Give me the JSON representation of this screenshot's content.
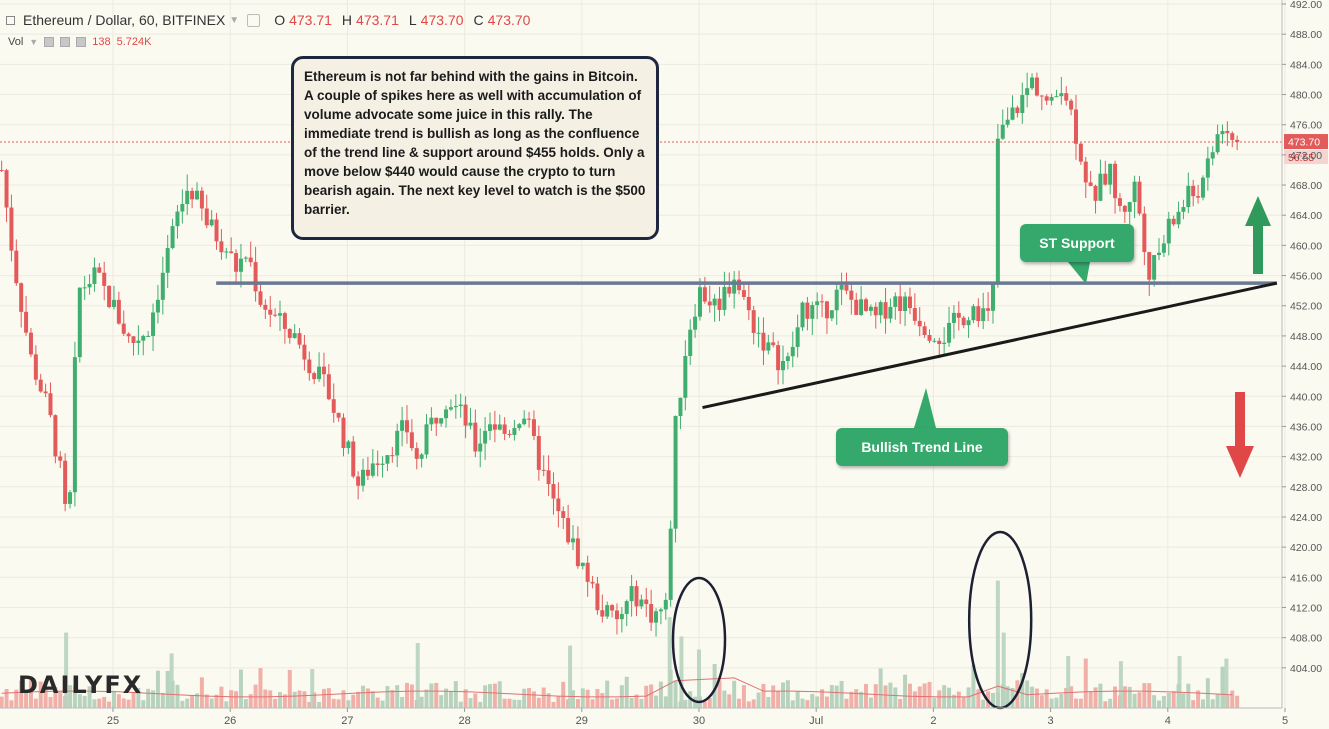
{
  "header": {
    "symbol": "Ethereum / Dollar, 60, BITFINEX",
    "o_label": "O",
    "o_value": "473.71",
    "h_label": "H",
    "h_value": "473.71",
    "l_label": "L",
    "l_value": "473.70",
    "c_label": "C",
    "c_value": "473.70"
  },
  "volume_header": {
    "label": "Vol",
    "count": "138",
    "value": "5.724K"
  },
  "annotation": "Ethereum is not far behind with the gains in Bitcoin. A couple of spikes here as well with accumulation of volume advocate some juice in this rally. The immediate trend is bullish as long as the confluence of the trend line & support around $455 holds. Only a move below $440 would cause the crypto to turn bearish again. The next key level to watch is the $500 barrier.",
  "callouts": {
    "support": "ST Support",
    "trend": "Bullish Trend Line"
  },
  "logo": "DAILYFX",
  "price_tag": {
    "price": "473.70",
    "countdown": "56:55"
  },
  "colors": {
    "up": "#3fae6e",
    "down": "#e35a5a",
    "vol_up": "#b7d3bd",
    "vol_down": "#f0b0a8",
    "bg": "#fbfaf1"
  },
  "chart_data": {
    "type": "candlestick",
    "ylim": [
      400,
      492
    ],
    "y_ticks": [
      404,
      408,
      412,
      416,
      420,
      424,
      428,
      432,
      436,
      440,
      444,
      448,
      452,
      456,
      460,
      464,
      468,
      472,
      476,
      480,
      484,
      488,
      492
    ],
    "x_ticks": [
      "25",
      "26",
      "27",
      "28",
      "29",
      "30",
      "Jul",
      "2",
      "3",
      "4",
      "5"
    ],
    "last_price": 473.7,
    "support_level": 455,
    "trend_line": {
      "from": [
        "30",
        438.5
      ],
      "to": [
        "5",
        455
      ]
    },
    "close_path": [
      [
        24.05,
        470
      ],
      [
        24.15,
        458
      ],
      [
        24.3,
        445
      ],
      [
        24.45,
        438
      ],
      [
        24.55,
        430
      ],
      [
        24.62,
        421
      ],
      [
        24.7,
        454
      ],
      [
        24.85,
        456
      ],
      [
        25.0,
        452
      ],
      [
        25.15,
        447
      ],
      [
        25.3,
        449
      ],
      [
        25.45,
        458
      ],
      [
        25.55,
        464
      ],
      [
        25.65,
        468
      ],
      [
        25.8,
        463
      ],
      [
        25.95,
        460
      ],
      [
        26.05,
        457
      ],
      [
        26.15,
        459
      ],
      [
        26.25,
        453
      ],
      [
        26.4,
        450
      ],
      [
        26.55,
        448
      ],
      [
        26.7,
        444
      ],
      [
        26.85,
        440
      ],
      [
        27.0,
        433
      ],
      [
        27.1,
        428
      ],
      [
        27.2,
        431
      ],
      [
        27.35,
        433
      ],
      [
        27.5,
        436
      ],
      [
        27.6,
        431
      ],
      [
        27.7,
        436
      ],
      [
        27.85,
        440
      ],
      [
        28.0,
        437
      ],
      [
        28.1,
        433
      ],
      [
        28.2,
        437
      ],
      [
        28.35,
        435
      ],
      [
        28.5,
        438
      ],
      [
        28.6,
        433
      ],
      [
        28.75,
        426
      ],
      [
        28.9,
        421
      ],
      [
        29.05,
        416
      ],
      [
        29.15,
        412
      ],
      [
        29.3,
        410
      ],
      [
        29.45,
        414
      ],
      [
        29.6,
        411
      ],
      [
        29.72,
        412
      ],
      [
        29.8,
        436
      ],
      [
        29.9,
        448
      ],
      [
        30.0,
        454
      ],
      [
        30.15,
        452
      ],
      [
        30.3,
        456
      ],
      [
        30.45,
        450
      ],
      [
        30.6,
        446
      ],
      [
        30.75,
        444
      ],
      [
        30.9,
        452
      ],
      [
        31.05,
        451
      ],
      [
        31.2,
        454
      ],
      [
        31.35,
        452
      ],
      [
        31.5,
        450
      ],
      [
        31.65,
        453
      ],
      [
        31.8,
        452
      ],
      [
        31.95,
        449
      ],
      [
        32.1,
        448
      ],
      [
        32.2,
        450
      ],
      [
        32.35,
        452
      ],
      [
        32.5,
        450
      ],
      [
        32.55,
        474
      ],
      [
        32.7,
        478
      ],
      [
        32.85,
        482
      ],
      [
        33.0,
        478
      ],
      [
        33.1,
        482
      ],
      [
        33.2,
        476
      ],
      [
        33.35,
        466
      ],
      [
        33.5,
        470
      ],
      [
        33.6,
        464
      ],
      [
        33.72,
        468
      ],
      [
        33.85,
        456
      ],
      [
        34.0,
        462
      ],
      [
        34.15,
        466
      ],
      [
        34.3,
        468
      ],
      [
        34.45,
        476
      ],
      [
        34.55,
        474
      ],
      [
        34.6,
        473.7
      ]
    ],
    "volume_spikes": [
      [
        24.6,
        58
      ],
      [
        25.5,
        42
      ],
      [
        26.7,
        30
      ],
      [
        27.6,
        50
      ],
      [
        28.9,
        48
      ],
      [
        29.75,
        70
      ],
      [
        29.85,
        55
      ],
      [
        30.0,
        45
      ],
      [
        32.55,
        98
      ],
      [
        32.6,
        58
      ],
      [
        33.15,
        40
      ],
      [
        33.6,
        36
      ],
      [
        34.1,
        40
      ],
      [
        34.5,
        38
      ]
    ]
  }
}
